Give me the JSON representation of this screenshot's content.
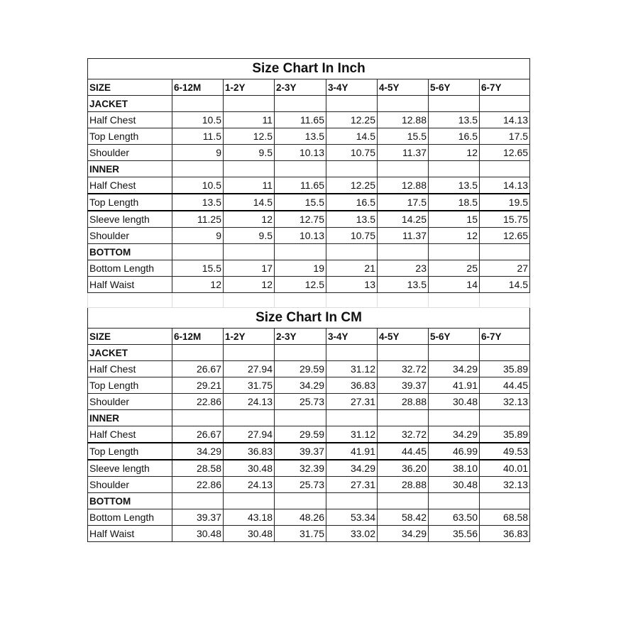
{
  "columns": [
    "SIZE",
    "6-12M",
    "1-2Y",
    "2-3Y",
    "3-4Y",
    "4-5Y",
    "5-6Y",
    "6-7Y"
  ],
  "tables": [
    {
      "title": "Size Chart In Inch",
      "rows": [
        {
          "label": "JACKET",
          "section": true,
          "values": []
        },
        {
          "label": "Half Chest",
          "values": [
            "10.5",
            "11",
            "11.65",
            "12.25",
            "12.88",
            "13.5",
            "14.13"
          ]
        },
        {
          "label": "Top Length",
          "values": [
            "11.5",
            "12.5",
            "13.5",
            "14.5",
            "15.5",
            "16.5",
            "17.5"
          ]
        },
        {
          "label": "Shoulder",
          "values": [
            "9",
            "9.5",
            "10.13",
            "10.75",
            "11.37",
            "12",
            "12.65"
          ]
        },
        {
          "label": "INNER",
          "section": true,
          "values": []
        },
        {
          "label": "Half Chest",
          "thick": true,
          "values": [
            "10.5",
            "11",
            "11.65",
            "12.25",
            "12.88",
            "13.5",
            "14.13"
          ]
        },
        {
          "label": "Top Length",
          "thick": true,
          "values": [
            "13.5",
            "14.5",
            "15.5",
            "16.5",
            "17.5",
            "18.5",
            "19.5"
          ]
        },
        {
          "label": "Sleeve length",
          "values": [
            "11.25",
            "12",
            "12.75",
            "13.5",
            "14.25",
            "15",
            "15.75"
          ]
        },
        {
          "label": "Shoulder",
          "values": [
            "9",
            "9.5",
            "10.13",
            "10.75",
            "11.37",
            "12",
            "12.65"
          ]
        },
        {
          "label": "BOTTOM",
          "section": true,
          "values": []
        },
        {
          "label": "Bottom Length",
          "values": [
            "15.5",
            "17",
            "19",
            "21",
            "23",
            "25",
            "27"
          ]
        },
        {
          "label": "Half Waist",
          "values": [
            "12",
            "12",
            "12.5",
            "13",
            "13.5",
            "14",
            "14.5"
          ]
        }
      ]
    },
    {
      "title": "Size Chart In CM",
      "rows": [
        {
          "label": "JACKET",
          "section": true,
          "values": []
        },
        {
          "label": "Half Chest",
          "values": [
            "26.67",
            "27.94",
            "29.59",
            "31.12",
            "32.72",
            "34.29",
            "35.89"
          ]
        },
        {
          "label": "Top Length",
          "values": [
            "29.21",
            "31.75",
            "34.29",
            "36.83",
            "39.37",
            "41.91",
            "44.45"
          ]
        },
        {
          "label": "Shoulder",
          "values": [
            "22.86",
            "24.13",
            "25.73",
            "27.31",
            "28.88",
            "30.48",
            "32.13"
          ]
        },
        {
          "label": "INNER",
          "section": true,
          "values": []
        },
        {
          "label": "Half Chest",
          "thick": true,
          "values": [
            "26.67",
            "27.94",
            "29.59",
            "31.12",
            "32.72",
            "34.29",
            "35.89"
          ]
        },
        {
          "label": "Top Length",
          "thick": true,
          "values": [
            "34.29",
            "36.83",
            "39.37",
            "41.91",
            "44.45",
            "46.99",
            "49.53"
          ]
        },
        {
          "label": "Sleeve length",
          "values": [
            "28.58",
            "30.48",
            "32.39",
            "34.29",
            "36.20",
            "38.10",
            "40.01"
          ]
        },
        {
          "label": "Shoulder",
          "values": [
            "22.86",
            "24.13",
            "25.73",
            "27.31",
            "28.88",
            "30.48",
            "32.13"
          ]
        },
        {
          "label": "BOTTOM",
          "section": true,
          "values": []
        },
        {
          "label": "Bottom Length",
          "values": [
            "39.37",
            "43.18",
            "48.26",
            "53.34",
            "58.42",
            "63.50",
            "68.58"
          ]
        },
        {
          "label": "Half Waist",
          "values": [
            "30.48",
            "30.48",
            "31.75",
            "33.02",
            "34.29",
            "35.56",
            "36.83"
          ]
        }
      ]
    }
  ]
}
